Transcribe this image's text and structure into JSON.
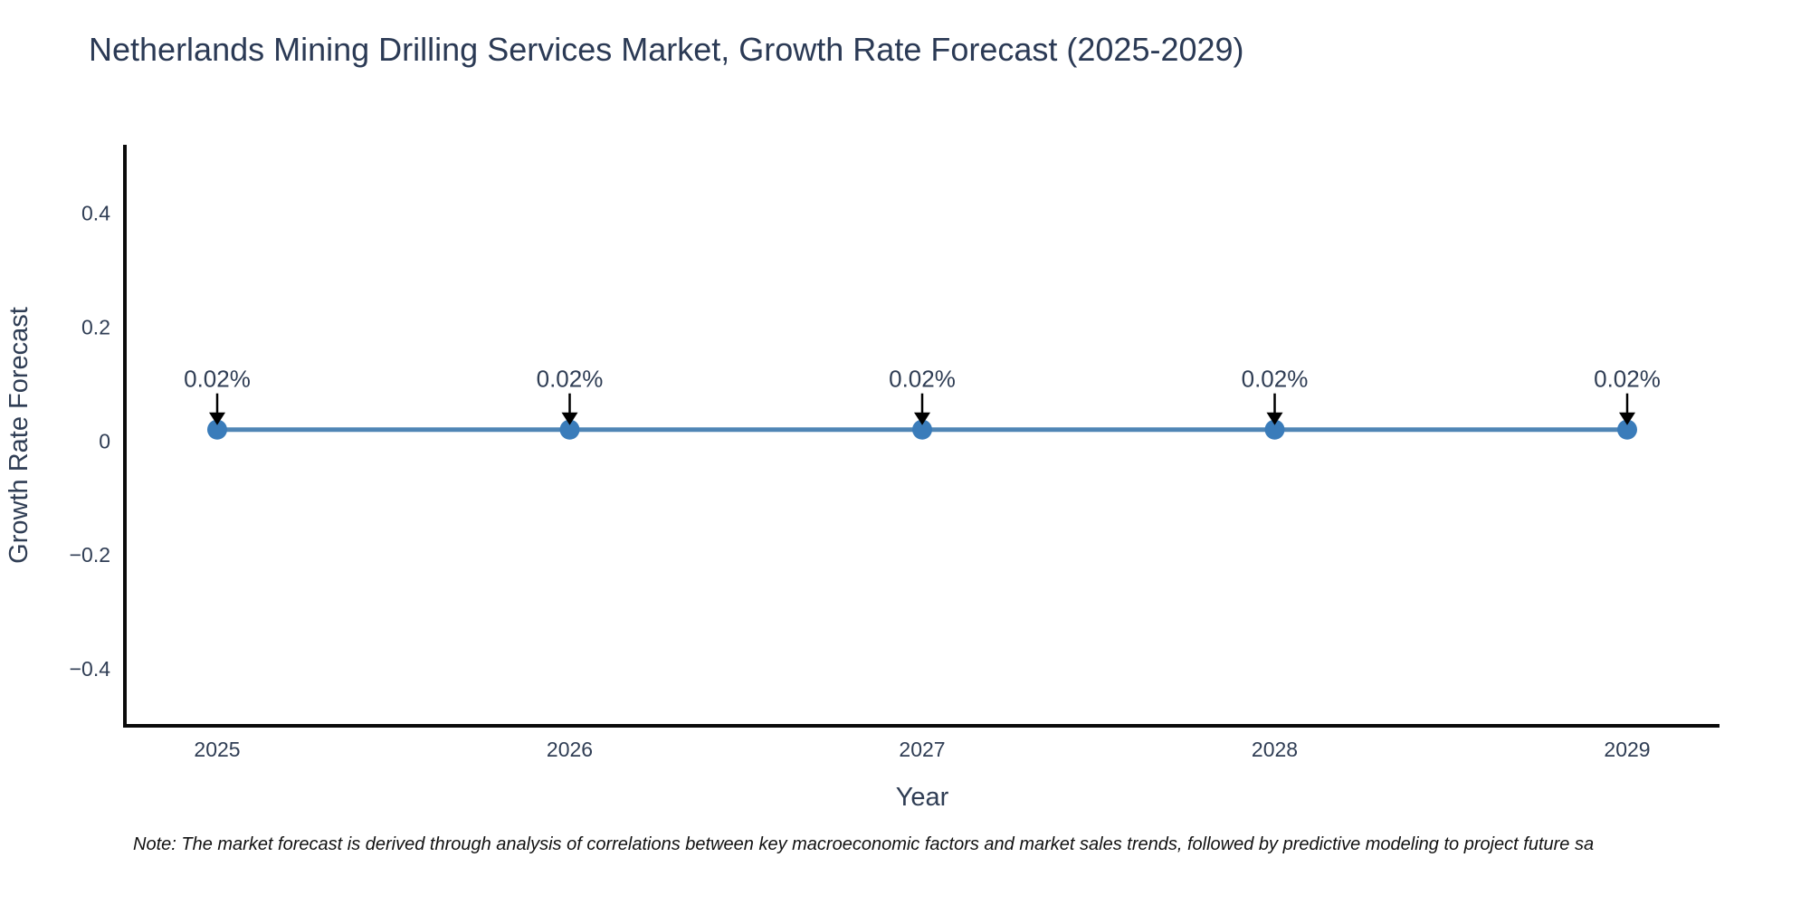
{
  "page": {
    "title": "Netherlands Mining Drilling Services Market, Growth Rate Forecast (2025-2029)",
    "note": "Note: The market forecast is derived through analysis of correlations between key macroeconomic factors and market sales trends, followed by predictive modeling to project future sa"
  },
  "chart_data": {
    "type": "line",
    "title": "Netherlands Mining Drilling Services Market, Growth Rate Forecast (2025-2029)",
    "xlabel": "Year",
    "ylabel": "Growth Rate Forecast",
    "x": [
      2025,
      2026,
      2027,
      2028,
      2029
    ],
    "xtick_labels": [
      "2025",
      "2026",
      "2027",
      "2028",
      "2029"
    ],
    "series": [
      {
        "name": "Growth Rate Forecast",
        "values": [
          0.02,
          0.02,
          0.02,
          0.02,
          0.02
        ]
      }
    ],
    "point_annotations": [
      "0.02%",
      "0.02%",
      "0.02%",
      "0.02%",
      "0.02%"
    ],
    "annotation_style": "text-above-with-down-arrow",
    "ylim": [
      -0.5,
      0.52
    ],
    "yticks": {
      "values": [
        0.4,
        0.2,
        0,
        -0.2,
        -0.4
      ],
      "labels": [
        "0.4",
        "0.2",
        "0",
        "−0.2",
        "−0.4"
      ]
    },
    "grid": false,
    "legend": "none",
    "marker_style": "circle",
    "colors": {
      "line": "#4f85b5",
      "marker": "#3a7cba",
      "axis_spine": "#0a0a0a",
      "tick_text": "#2f3d54",
      "axis_label_text": "#2f3d54",
      "annotation_text": "#2f3d54",
      "annotation_arrow": "#000000",
      "title_text": "#2b3a55",
      "note_text": "#111111",
      "background": "#ffffff"
    }
  }
}
